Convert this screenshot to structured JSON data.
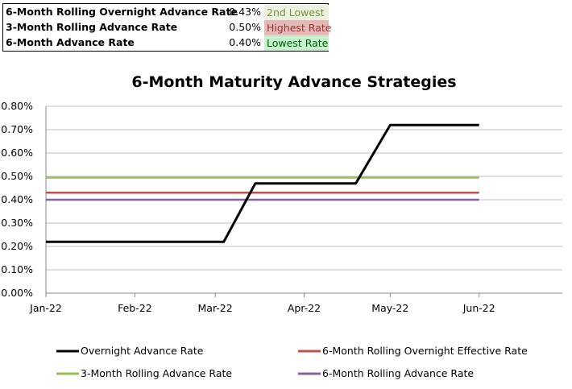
{
  "summary": {
    "rows": [
      {
        "label": "6-Month Rolling Overnight Advance Rate",
        "value": "0.43%",
        "rank": "2nd Lowest",
        "rank_bg": "#ebf1de",
        "rank_color": "#76933c"
      },
      {
        "label": "3-Month Rolling Advance Rate",
        "value": "0.50%",
        "rank": "Highest Rate",
        "rank_bg": "#e6b8b7",
        "rank_color": "#963634"
      },
      {
        "label": "6-Month Advance Rate",
        "value": "0.40%",
        "rank": "Lowest Rate",
        "rank_bg": "#c6efce",
        "rank_color": "#006100"
      }
    ]
  },
  "chart_data": {
    "type": "line",
    "title": "6-Month Maturity Advance Strategies",
    "xlabel": "",
    "ylabel": "",
    "x_ticks": [
      "Jan-22",
      "Feb-22",
      "Mar-22",
      "Apr-22",
      "May-22",
      "Jun-22"
    ],
    "x_range": [
      "2022-01-01",
      "2022-06-30"
    ],
    "ylim": [
      0,
      0.8
    ],
    "y_ticks": [
      0.0,
      0.1,
      0.2,
      0.3,
      0.4,
      0.5,
      0.6,
      0.7,
      0.8
    ],
    "y_tick_labels": [
      "0.00%",
      "0.10%",
      "0.20%",
      "0.30%",
      "0.40%",
      "0.50%",
      "0.60%",
      "0.70%",
      "0.80%"
    ],
    "grid": true,
    "legend_position": "bottom",
    "series": [
      {
        "name": "Overnight Advance Rate",
        "color": "#000000",
        "points": [
          [
            "2022-01-01",
            0.22
          ],
          [
            "2022-03-04",
            0.22
          ],
          [
            "2022-03-15",
            0.47
          ],
          [
            "2022-04-19",
            0.47
          ],
          [
            "2022-05-01",
            0.72
          ],
          [
            "2022-06-01",
            0.72
          ]
        ]
      },
      {
        "name": "6-Month Rolling Overnight Effective Rate",
        "color": "#c0504d",
        "points": [
          [
            "2022-01-01",
            0.43
          ],
          [
            "2022-06-01",
            0.43
          ]
        ]
      },
      {
        "name": "3-Month Rolling Advance Rate",
        "color": "#9bbb59",
        "points": [
          [
            "2022-01-01",
            0.495
          ],
          [
            "2022-06-01",
            0.495
          ]
        ]
      },
      {
        "name": "6-Month Rolling Advance Rate",
        "color": "#8064a2",
        "points": [
          [
            "2022-01-01",
            0.4
          ],
          [
            "2022-06-01",
            0.4
          ]
        ]
      }
    ]
  }
}
